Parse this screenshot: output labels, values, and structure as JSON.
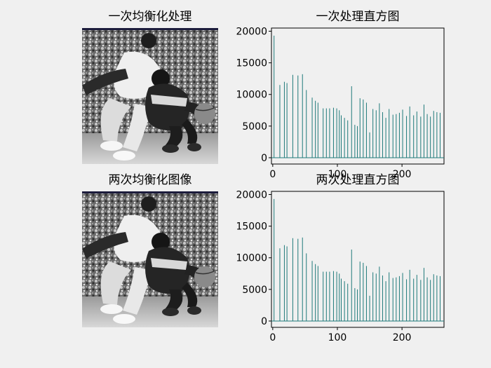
{
  "figure": {
    "background": "#f0f0f0",
    "bar_color": "#1f7a7a",
    "images": [
      {
        "title": "一次均衡化处理",
        "description": "grayscale basketball photo, equalized once"
      },
      {
        "title": "两次均衡化图像",
        "description": "grayscale basketball photo, equalized twice"
      }
    ]
  },
  "chart_data": [
    {
      "type": "bar",
      "title": "一次处理直方图",
      "xlabel": "",
      "ylabel": "",
      "xlim": [
        -2,
        265
      ],
      "ylim": [
        -1000,
        20500
      ],
      "xticks": [
        0,
        100,
        200
      ],
      "yticks": [
        0,
        5000,
        10000,
        15000,
        20000
      ],
      "x": [
        2,
        11,
        18,
        22,
        31,
        39,
        46,
        52,
        61,
        66,
        70,
        78,
        83,
        88,
        94,
        99,
        103,
        106,
        111,
        116,
        122,
        127,
        131,
        135,
        140,
        145,
        150,
        155,
        160,
        165,
        170,
        175,
        180,
        186,
        191,
        196,
        201,
        207,
        212,
        218,
        223,
        229,
        234,
        239,
        244,
        249,
        254,
        259
      ],
      "values": [
        19300,
        11500,
        12000,
        11800,
        13100,
        13000,
        13200,
        10700,
        9500,
        9000,
        8700,
        7800,
        7800,
        7800,
        7900,
        7800,
        7500,
        6700,
        6300,
        5900,
        11300,
        5200,
        5000,
        9400,
        9200,
        8700,
        4000,
        7700,
        7500,
        8600,
        7200,
        6300,
        7700,
        6800,
        6900,
        7100,
        7600,
        6600,
        8100,
        6700,
        7300,
        6500,
        8400,
        6900,
        6500,
        7400,
        7200,
        7100
      ]
    },
    {
      "type": "bar",
      "title": "两次处理直方图",
      "xlabel": "",
      "ylabel": "",
      "xlim": [
        -2,
        265
      ],
      "ylim": [
        -1000,
        20500
      ],
      "xticks": [
        0,
        100,
        200
      ],
      "yticks": [
        0,
        5000,
        10000,
        15000,
        20000
      ],
      "x": [
        2,
        11,
        18,
        22,
        31,
        39,
        46,
        52,
        61,
        66,
        70,
        78,
        83,
        88,
        94,
        99,
        103,
        106,
        111,
        116,
        122,
        127,
        131,
        135,
        140,
        145,
        150,
        155,
        160,
        165,
        170,
        175,
        180,
        186,
        191,
        196,
        201,
        207,
        212,
        218,
        223,
        229,
        234,
        239,
        244,
        249,
        254,
        259
      ],
      "values": [
        19300,
        11500,
        12000,
        11800,
        13100,
        13000,
        13200,
        10700,
        9500,
        9000,
        8700,
        7800,
        7800,
        7800,
        7900,
        7800,
        7500,
        6700,
        6300,
        5900,
        11300,
        5200,
        5000,
        9400,
        9200,
        8700,
        4000,
        7700,
        7500,
        8600,
        7200,
        6300,
        7700,
        6800,
        6900,
        7100,
        7600,
        6600,
        8100,
        6700,
        7300,
        6500,
        8400,
        6900,
        6500,
        7400,
        7200,
        7100
      ]
    }
  ]
}
